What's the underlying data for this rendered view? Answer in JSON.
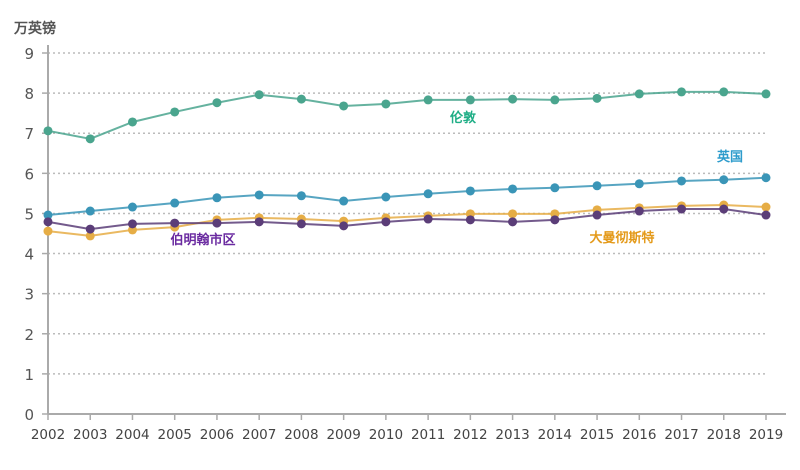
{
  "chart_data": {
    "type": "line",
    "ylabel": "万英镑",
    "ylim": [
      0,
      9
    ],
    "yticks": [
      0,
      1,
      2,
      3,
      4,
      5,
      6,
      7,
      8,
      9
    ],
    "grid": true,
    "x": [
      2002,
      2003,
      2004,
      2005,
      2006,
      2007,
      2008,
      2009,
      2010,
      2011,
      2012,
      2013,
      2014,
      2015,
      2016,
      2017,
      2018,
      2019
    ],
    "series": [
      {
        "name": "伦敦",
        "color": "#4aa58e",
        "labelColor": "#1fae86",
        "values": [
          7.06,
          6.86,
          7.28,
          7.53,
          7.76,
          7.96,
          7.85,
          7.68,
          7.73,
          7.83,
          7.83,
          7.85,
          7.83,
          7.87,
          7.98,
          8.03,
          8.03,
          7.98
        ]
      },
      {
        "name": "英国",
        "color": "#3a95b7",
        "labelColor": "#2e9ccc",
        "values": [
          4.96,
          5.06,
          5.16,
          5.26,
          5.39,
          5.46,
          5.44,
          5.31,
          5.41,
          5.49,
          5.56,
          5.61,
          5.64,
          5.69,
          5.74,
          5.81,
          5.84,
          5.89
        ]
      },
      {
        "name": "大曼彻斯特",
        "color": "#e6ad45",
        "labelColor": "#e49a1a",
        "values": [
          4.56,
          4.44,
          4.59,
          4.66,
          4.84,
          4.89,
          4.86,
          4.81,
          4.89,
          4.94,
          4.99,
          4.99,
          4.99,
          5.09,
          5.14,
          5.19,
          5.21,
          5.16
        ]
      },
      {
        "name": "伯明翰市区",
        "color": "#5b3d78",
        "labelColor": "#6a2aa0",
        "values": [
          4.79,
          4.61,
          4.74,
          4.76,
          4.76,
          4.79,
          4.74,
          4.69,
          4.79,
          4.86,
          4.84,
          4.79,
          4.84,
          4.96,
          5.06,
          5.11,
          5.11,
          4.96
        ]
      }
    ]
  }
}
